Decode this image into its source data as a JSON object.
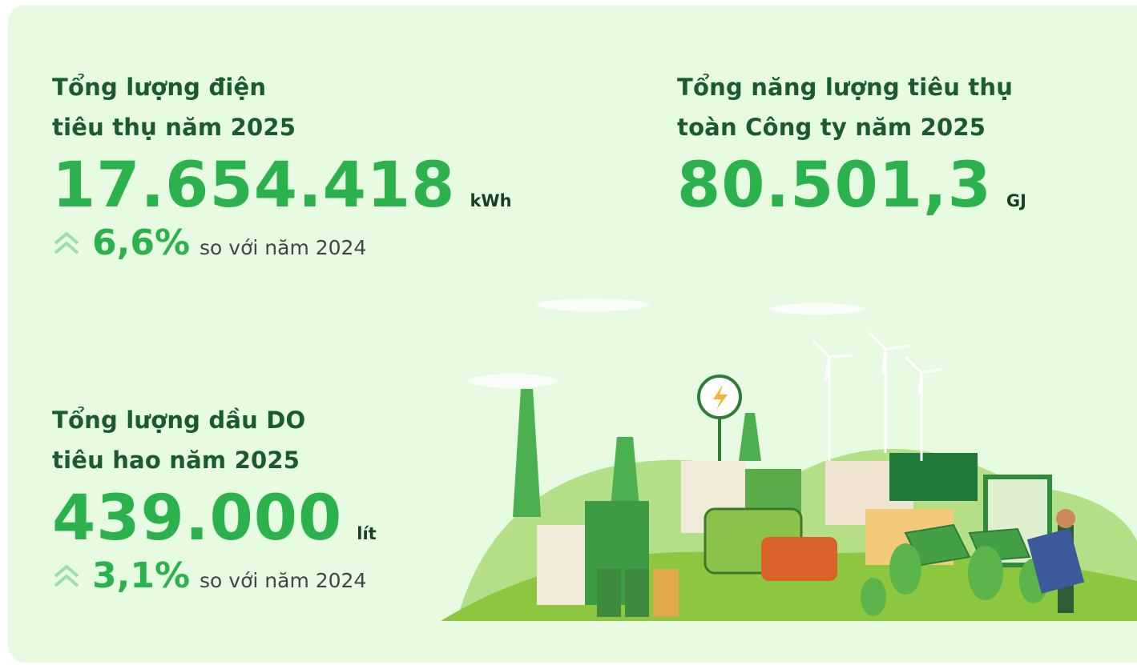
{
  "stats": [
    {
      "title": [
        "Tổng lượng điện",
        "tiêu thụ năm 2025"
      ],
      "value": "17.654.418",
      "unit": "kWh",
      "change": "6,6%",
      "comparison": "so với năm 2024"
    },
    {
      "title": [
        "Tổng năng lượng tiêu thụ",
        "toàn Công ty năm 2025"
      ],
      "value": "80.501,3",
      "unit": "GJ"
    },
    {
      "title": [
        "Tổng lượng dầu DO",
        "tiêu hao năm 2025"
      ],
      "value": "439.000",
      "unit": "lít",
      "change": "3,1%",
      "comparison": "so với năm 2024"
    }
  ]
}
